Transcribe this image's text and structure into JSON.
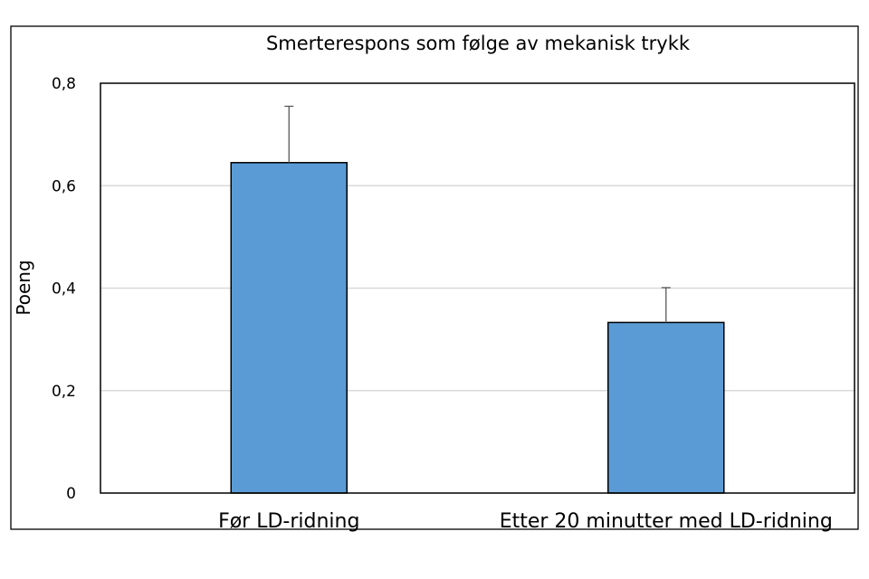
{
  "chart_data": {
    "type": "bar",
    "title": "Smerterespons som følge av mekanisk trykk",
    "xlabel": "",
    "ylabel": "Poeng",
    "categories": [
      "Før LD-ridning",
      "Etter 20 minutter med LD-ridning"
    ],
    "values": [
      0.645,
      0.333
    ],
    "errors": [
      0.11,
      0.068
    ],
    "ylim": [
      0,
      0.8
    ],
    "yticks": [
      0,
      0.2,
      0.4,
      0.6,
      0.8
    ],
    "ytick_labels": [
      "0",
      "0,2",
      "0,4",
      "0,6",
      "0,8"
    ],
    "grid": true,
    "legend": "none",
    "bar_color": "#5b9bd5"
  }
}
